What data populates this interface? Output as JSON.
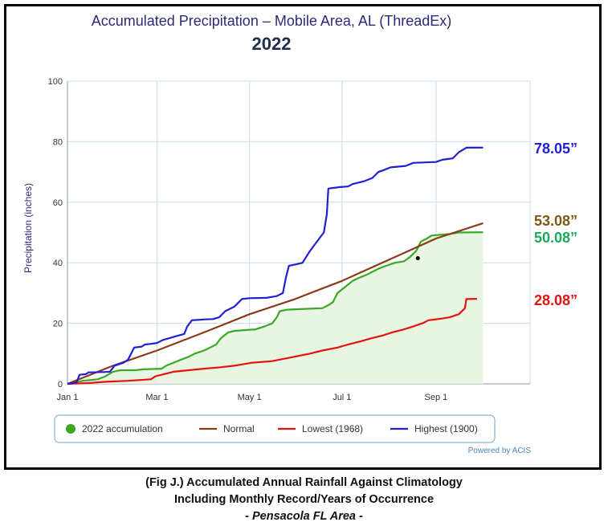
{
  "chart_data": {
    "type": "line",
    "title": "Accumulated Precipitation – Mobile Area, AL (ThreadEx)",
    "subtitle": "2022",
    "ylabel": "Precipitation (inches)",
    "xlabel": "",
    "ylim": [
      0,
      100
    ],
    "xlim_days": [
      0,
      305
    ],
    "grid": true,
    "x_ticks": [
      {
        "label": "Jan 1",
        "day": 0
      },
      {
        "label": "Mar 1",
        "day": 59
      },
      {
        "label": "May 1",
        "day": 120
      },
      {
        "label": "Jul 1",
        "day": 181
      },
      {
        "label": "Sep 1",
        "day": 243
      }
    ],
    "y_ticks": [
      0,
      20,
      40,
      60,
      80,
      100
    ],
    "legend_position": "bottom",
    "series": [
      {
        "name": "Highest (1900)",
        "color": "#1f1fd6",
        "end_label": "78.05”",
        "points": [
          [
            0,
            0
          ],
          [
            6,
            0.5
          ],
          [
            8,
            3
          ],
          [
            12,
            3.2
          ],
          [
            14,
            3.8
          ],
          [
            24,
            3.9
          ],
          [
            28,
            4
          ],
          [
            31,
            6
          ],
          [
            37,
            7
          ],
          [
            40,
            8
          ],
          [
            44,
            12
          ],
          [
            49,
            12.3
          ],
          [
            51,
            13
          ],
          [
            55,
            13.2
          ],
          [
            59,
            13.5
          ],
          [
            63,
            14.5
          ],
          [
            72,
            15.8
          ],
          [
            77,
            16.5
          ],
          [
            79,
            19
          ],
          [
            82,
            21
          ],
          [
            91,
            21.3
          ],
          [
            96,
            21.4
          ],
          [
            100,
            22
          ],
          [
            104,
            24
          ],
          [
            110,
            25.5
          ],
          [
            113,
            27
          ],
          [
            115,
            28
          ],
          [
            120,
            28.3
          ],
          [
            131,
            28.4
          ],
          [
            138,
            29
          ],
          [
            142,
            30
          ],
          [
            144,
            35
          ],
          [
            146,
            39
          ],
          [
            151,
            39.5
          ],
          [
            155,
            40
          ],
          [
            160,
            44
          ],
          [
            163,
            46
          ],
          [
            166,
            48
          ],
          [
            169,
            50
          ],
          [
            171,
            56
          ],
          [
            172,
            64.5
          ],
          [
            180,
            65
          ],
          [
            185,
            65.2
          ],
          [
            188,
            66
          ],
          [
            196,
            67
          ],
          [
            201,
            68
          ],
          [
            205,
            70
          ],
          [
            208,
            70.5
          ],
          [
            213,
            71.5
          ],
          [
            223,
            72
          ],
          [
            228,
            73
          ],
          [
            243,
            73.3
          ],
          [
            247,
            74
          ],
          [
            254,
            74.5
          ],
          [
            258,
            76.5
          ],
          [
            263,
            78
          ],
          [
            274,
            78.05
          ]
        ]
      },
      {
        "name": "Normal",
        "color": "#8b3a1a",
        "end_label": "53.08”",
        "points": [
          [
            0,
            0
          ],
          [
            30,
            6
          ],
          [
            59,
            11
          ],
          [
            90,
            17
          ],
          [
            120,
            23
          ],
          [
            150,
            28
          ],
          [
            181,
            34
          ],
          [
            212,
            41
          ],
          [
            243,
            48
          ],
          [
            274,
            53.08
          ]
        ]
      },
      {
        "name": "2022 accumulation",
        "color": "#3aa823",
        "fill": "#e8f5e2",
        "end_label": "50.08”",
        "points": [
          [
            0,
            0
          ],
          [
            10,
            1
          ],
          [
            20,
            1.5
          ],
          [
            25,
            2.5
          ],
          [
            30,
            4
          ],
          [
            35,
            4.5
          ],
          [
            45,
            4.5
          ],
          [
            50,
            4.8
          ],
          [
            62,
            5
          ],
          [
            65,
            6
          ],
          [
            70,
            7
          ],
          [
            75,
            8
          ],
          [
            80,
            9
          ],
          [
            84,
            10
          ],
          [
            90,
            11
          ],
          [
            94,
            12
          ],
          [
            98,
            13
          ],
          [
            101,
            15
          ],
          [
            106,
            17
          ],
          [
            110,
            17.5
          ],
          [
            124,
            18
          ],
          [
            130,
            19
          ],
          [
            135,
            20
          ],
          [
            138,
            22
          ],
          [
            140,
            24
          ],
          [
            145,
            24.5
          ],
          [
            158,
            24.8
          ],
          [
            168,
            25
          ],
          [
            172,
            26
          ],
          [
            175,
            27
          ],
          [
            178,
            30
          ],
          [
            183,
            32
          ],
          [
            188,
            34
          ],
          [
            192,
            35
          ],
          [
            197,
            36
          ],
          [
            201,
            37
          ],
          [
            205,
            38
          ],
          [
            210,
            39
          ],
          [
            216,
            40
          ],
          [
            222,
            40.5
          ],
          [
            226,
            42
          ],
          [
            230,
            44
          ],
          [
            233,
            47
          ],
          [
            237,
            48
          ],
          [
            240,
            49
          ],
          [
            252,
            49.5
          ],
          [
            258,
            50
          ],
          [
            274,
            50.08
          ]
        ]
      },
      {
        "name": "Lowest (1968)",
        "color": "#e3130f",
        "end_label": "28.08”",
        "points": [
          [
            0,
            0
          ],
          [
            15,
            0.3
          ],
          [
            25,
            0.7
          ],
          [
            40,
            1
          ],
          [
            55,
            1.5
          ],
          [
            58,
            2.5
          ],
          [
            62,
            3
          ],
          [
            70,
            4
          ],
          [
            80,
            4.5
          ],
          [
            90,
            5
          ],
          [
            101,
            5.5
          ],
          [
            110,
            6
          ],
          [
            122,
            7
          ],
          [
            135,
            7.5
          ],
          [
            140,
            8
          ],
          [
            150,
            9
          ],
          [
            160,
            10
          ],
          [
            168,
            11
          ],
          [
            178,
            12
          ],
          [
            185,
            13
          ],
          [
            193,
            14
          ],
          [
            200,
            15
          ],
          [
            208,
            16
          ],
          [
            214,
            17
          ],
          [
            222,
            18
          ],
          [
            228,
            19
          ],
          [
            234,
            20
          ],
          [
            238,
            21
          ],
          [
            246,
            21.5
          ],
          [
            252,
            22
          ],
          [
            258,
            23
          ],
          [
            262,
            25
          ],
          [
            263,
            28
          ],
          [
            270,
            28.08
          ]
        ]
      }
    ],
    "marker_point": [
      231,
      41.5
    ],
    "footer": "Powered by ACIS"
  },
  "caption": {
    "line1": "(Fig J.) Accumulated Annual Rainfall Against  Climatology",
    "line2": "Including Monthly Record/Years of Occurrence",
    "line3": "- Pensacola FL Area -"
  }
}
